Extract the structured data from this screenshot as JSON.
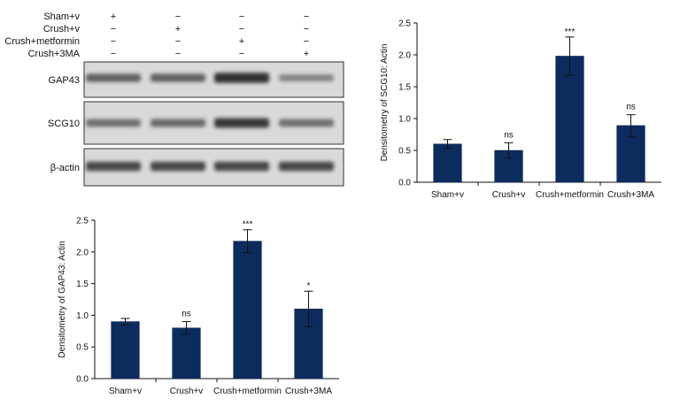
{
  "blot": {
    "conditions": [
      "Sham+v",
      "Crush+v",
      "Crush+metformin",
      "Crush+3MA"
    ],
    "matrix": [
      [
        "+",
        "−",
        "−",
        "−"
      ],
      [
        "−",
        "+",
        "−",
        "−"
      ],
      [
        "−",
        "−",
        "+",
        "−"
      ],
      [
        "−",
        "−",
        "−",
        "+"
      ]
    ],
    "bands": [
      {
        "label": "GAP43",
        "intensity": [
          0.55,
          0.55,
          0.9,
          0.3
        ]
      },
      {
        "label": "SCG10",
        "intensity": [
          0.45,
          0.5,
          0.85,
          0.45
        ]
      },
      {
        "label": "β-actin",
        "intensity": [
          0.75,
          0.75,
          0.75,
          0.75
        ]
      }
    ]
  },
  "chart_data": [
    {
      "type": "bar",
      "categories": [
        "Sham+v",
        "Crush+v",
        "Crush+metformin",
        "Crush+3MA"
      ],
      "values": [
        0.6,
        0.5,
        1.98,
        0.89
      ],
      "errors": [
        0.07,
        0.12,
        0.3,
        0.17
      ],
      "significance": [
        "",
        "ns",
        "***",
        "ns"
      ],
      "ylabel": "Densitometry of SCG10: Actin",
      "ylim": [
        0,
        2.5
      ],
      "yticks": [
        "0.0",
        "0.5",
        "1.0",
        "1.5",
        "2.0",
        "2.5"
      ],
      "bar_color": "#0c2c5e"
    },
    {
      "type": "bar",
      "categories": [
        "Sham+v",
        "Crush+v",
        "Crush+metformin",
        "Crush+3MA"
      ],
      "values": [
        0.9,
        0.8,
        2.17,
        1.1
      ],
      "errors": [
        0.05,
        0.1,
        0.18,
        0.28
      ],
      "significance": [
        "",
        "ns",
        "***",
        "*"
      ],
      "ylabel": "Densitometry of GAP43: Actin",
      "ylim": [
        0,
        2.5
      ],
      "yticks": [
        "0.0",
        "0.5",
        "1.0",
        "1.5",
        "2.0",
        "2.5"
      ],
      "bar_color": "#0c2c5e"
    }
  ]
}
